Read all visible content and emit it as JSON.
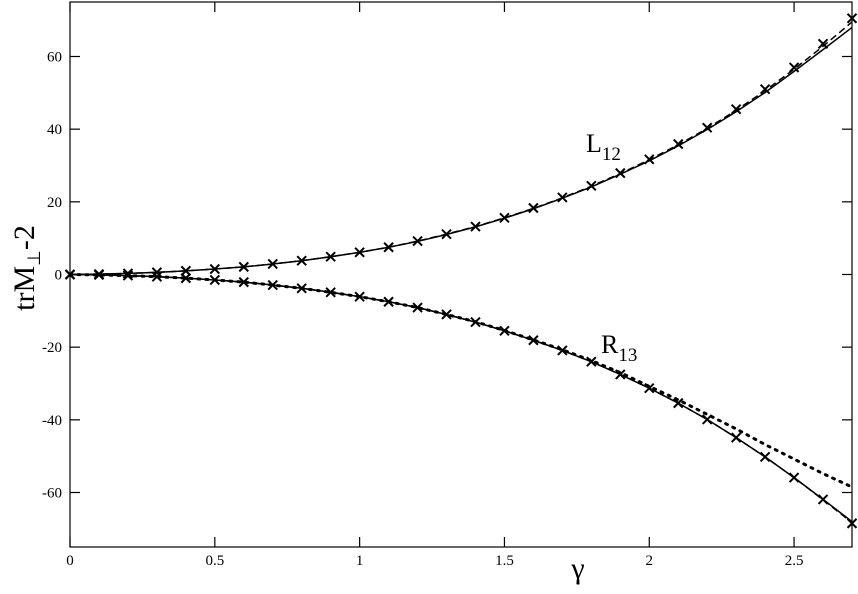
{
  "chart_data": {
    "type": "line",
    "xlabel": "γ",
    "ylabel": {
      "main": "trM",
      "sub": "⊥",
      "rest": "-2"
    },
    "annotations": [
      {
        "main": "L",
        "sub": "12"
      },
      {
        "main": "R",
        "sub": "13"
      }
    ],
    "x": [
      0,
      0.1,
      0.2,
      0.3,
      0.4,
      0.5,
      0.6,
      0.7,
      0.8,
      0.9,
      1.0,
      1.1,
      1.2,
      1.3,
      1.4,
      1.5,
      1.6,
      1.7,
      1.8,
      1.9,
      2.0,
      2.1,
      2.2,
      2.3,
      2.4,
      2.5,
      2.6,
      2.7
    ],
    "series": [
      {
        "style": "solid",
        "color": "#000000",
        "values": [
          0,
          0.1,
          0.3,
          0.6,
          1,
          1.5,
          2.1,
          2.9,
          3.8,
          4.9,
          6.1,
          7.5,
          9.1,
          11,
          13.1,
          15.5,
          18.1,
          21,
          24.1,
          27.6,
          31.3,
          35.4,
          39.9,
          44.8,
          50.1,
          55.9,
          61.9,
          68
        ]
      },
      {
        "style": "dashed",
        "color": "#000000",
        "values": [
          0,
          0.1,
          0.3,
          0.6,
          1,
          1.5,
          2.1,
          2.9,
          3.8,
          4.9,
          6.1,
          7.5,
          9.2,
          11.1,
          13.2,
          15.6,
          18.2,
          21.1,
          24.3,
          27.8,
          31.6,
          35.7,
          40.2,
          45.2,
          50.6,
          56.5,
          62.8,
          69.5
        ]
      },
      {
        "style": "markers",
        "color": "#000000",
        "values": [
          0,
          0.1,
          0.3,
          0.6,
          1,
          1.5,
          2.1,
          2.9,
          3.8,
          4.9,
          6.1,
          7.5,
          9.2,
          11.1,
          13.2,
          15.6,
          18.3,
          21.2,
          24.4,
          27.9,
          31.7,
          35.9,
          40.4,
          45.5,
          51,
          57,
          63.5,
          70.5
        ]
      },
      {
        "style": "solid",
        "color": "#000000",
        "values": [
          0,
          -0.1,
          -0.3,
          -0.6,
          -1,
          -1.5,
          -2.1,
          -2.9,
          -3.8,
          -4.9,
          -6.1,
          -7.5,
          -9.1,
          -11,
          -13.1,
          -15.5,
          -18.1,
          -20.9,
          -24,
          -27.5,
          -31.3,
          -35.4,
          -39.9,
          -44.9,
          -50.2,
          -55.9,
          -61.9,
          -68
        ]
      },
      {
        "style": "dashed",
        "color": "#000000",
        "values": [
          0,
          -0.1,
          -0.3,
          -0.6,
          -1,
          -1.5,
          -2.1,
          -2.9,
          -3.8,
          -4.9,
          -6.1,
          -7.5,
          -9.1,
          -11,
          -13.1,
          -15.5,
          -18.1,
          -20.9,
          -24,
          -27.5,
          -31.3,
          -35.4,
          -39.9,
          -44.9,
          -50.2,
          -55.9,
          -62,
          -68.3
        ]
      },
      {
        "style": "dotted",
        "color": "#000000",
        "values": [
          0,
          -0.1,
          -0.3,
          -0.6,
          -1,
          -1.5,
          -2.1,
          -2.9,
          -3.8,
          -4.9,
          -6.1,
          -7.5,
          -9.1,
          -11,
          -13,
          -15.4,
          -18,
          -20.7,
          -23.7,
          -27,
          -30.8,
          -34.5,
          -38.5,
          -42.5,
          -46.8,
          -50.8,
          -54.8,
          -58.5
        ]
      },
      {
        "style": "markers",
        "color": "#000000",
        "values": [
          0,
          -0.1,
          -0.3,
          -0.6,
          -1,
          -1.5,
          -2.1,
          -2.9,
          -3.8,
          -4.9,
          -6.1,
          -7.5,
          -9.1,
          -11,
          -13.1,
          -15.5,
          -18.1,
          -20.9,
          -24,
          -27.5,
          -31.3,
          -35.4,
          -39.9,
          -44.9,
          -50.2,
          -55.9,
          -61.9,
          -68.5
        ]
      }
    ],
    "xlim": [
      0,
      2.7
    ],
    "ylim": [
      -75,
      75
    ],
    "xticks": [
      0,
      0.5,
      1,
      1.5,
      2,
      2.5
    ],
    "yticks": [
      -60,
      -40,
      -20,
      0,
      20,
      40,
      60
    ],
    "grid": false
  }
}
